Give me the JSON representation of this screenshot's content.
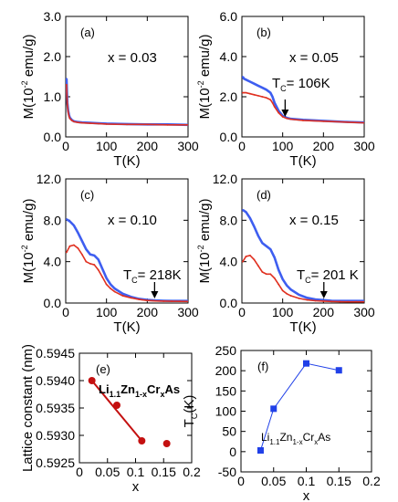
{
  "colors": {
    "zfc": "#3e5ef0",
    "fc": "#e03020",
    "lattice": "#c41010",
    "tc": "#2040e8"
  },
  "chart_data": [
    {
      "type": "line",
      "panel": "(a)",
      "note": "x = 0.03",
      "xlabel": "T(K)",
      "ylabel": "M(10^-2 emu/g)",
      "ylabel_parts": {
        "base": "M(10",
        "exp": "-2",
        "unit": " emu/g)"
      },
      "xlim": [
        0,
        300
      ],
      "ylim": [
        0,
        3
      ],
      "xticks": [
        "0",
        "100",
        "200",
        "300"
      ],
      "yticks": [
        "0.0",
        "1.0",
        "2.0",
        "3.0"
      ],
      "series": [
        {
          "role": "zfc",
          "x": [
            2,
            3,
            4,
            6,
            8,
            10,
            15,
            20,
            30,
            40,
            60,
            80,
            100,
            150,
            200,
            250,
            300
          ],
          "y": [
            1.45,
            1.1,
            0.85,
            0.65,
            0.55,
            0.48,
            0.42,
            0.39,
            0.37,
            0.36,
            0.35,
            0.34,
            0.33,
            0.32,
            0.31,
            0.31,
            0.3
          ]
        },
        {
          "role": "fc",
          "x": [
            2,
            3,
            4,
            6,
            8,
            10,
            15,
            20,
            30,
            40,
            60,
            80,
            100,
            150,
            200,
            250,
            300
          ],
          "y": [
            1.3,
            1.0,
            0.8,
            0.62,
            0.52,
            0.46,
            0.41,
            0.38,
            0.36,
            0.35,
            0.34,
            0.33,
            0.32,
            0.31,
            0.31,
            0.3,
            0.3
          ]
        }
      ]
    },
    {
      "type": "line",
      "panel": "(b)",
      "note": "x = 0.05",
      "xlabel": "T(K)",
      "ylabel": "M(10^-2 emu/g)",
      "ylabel_parts": {
        "base": "M(10",
        "exp": "-2",
        "unit": " emu/g)"
      },
      "xlim": [
        0,
        300
      ],
      "ylim": [
        0,
        6
      ],
      "xticks": [
        "0",
        "100",
        "200",
        "300"
      ],
      "yticks": [
        "0.0",
        "2.0",
        "4.0",
        "6.0"
      ],
      "tc_label": {
        "base": "T",
        "sub": "C",
        "rest": "= 106K",
        "T_K": 106
      },
      "series": [
        {
          "role": "zfc",
          "x": [
            2,
            5,
            10,
            20,
            30,
            40,
            50,
            60,
            70,
            75,
            80,
            90,
            100,
            110,
            120,
            150,
            200,
            250,
            300
          ],
          "y": [
            3.0,
            2.9,
            2.85,
            2.75,
            2.65,
            2.55,
            2.45,
            2.35,
            2.2,
            2.0,
            1.7,
            1.3,
            1.05,
            0.95,
            0.9,
            0.85,
            0.8,
            0.75,
            0.72
          ]
        },
        {
          "role": "fc",
          "x": [
            2,
            5,
            10,
            20,
            30,
            40,
            50,
            60,
            70,
            75,
            80,
            90,
            100,
            110,
            120,
            150,
            200,
            250,
            300
          ],
          "y": [
            2.2,
            2.2,
            2.2,
            2.15,
            2.1,
            2.05,
            2.0,
            1.95,
            1.85,
            1.7,
            1.5,
            1.2,
            1.0,
            0.92,
            0.88,
            0.82,
            0.78,
            0.74,
            0.7
          ]
        }
      ]
    },
    {
      "type": "line",
      "panel": "(c)",
      "note": "x = 0.10",
      "xlabel": "T(K)",
      "ylabel": "M(10^-2 emu/g)",
      "ylabel_parts": {
        "base": "M(10",
        "exp": "-2",
        "unit": " emu/g)"
      },
      "xlim": [
        0,
        300
      ],
      "ylim": [
        0,
        12
      ],
      "xticks": [
        "0",
        "100",
        "200",
        "300"
      ],
      "yticks": [
        "0.0",
        "4.0",
        "8.0",
        "12.0"
      ],
      "tc_label": {
        "base": "T",
        "sub": "C",
        "rest": "= 218K",
        "T_K": 218
      },
      "series": [
        {
          "role": "zfc",
          "x": [
            2,
            10,
            20,
            30,
            40,
            50,
            60,
            70,
            80,
            90,
            100,
            110,
            120,
            140,
            160,
            180,
            200,
            220,
            240,
            260,
            280,
            300
          ],
          "y": [
            8.1,
            7.9,
            7.5,
            6.8,
            6.0,
            5.2,
            4.7,
            4.6,
            4.2,
            3.3,
            2.4,
            1.8,
            1.4,
            0.9,
            0.6,
            0.4,
            0.3,
            0.25,
            0.22,
            0.2,
            0.2,
            0.2
          ]
        },
        {
          "role": "fc",
          "x": [
            2,
            10,
            20,
            30,
            40,
            50,
            60,
            70,
            80,
            90,
            100,
            110,
            120,
            140,
            160,
            180,
            200,
            220,
            240,
            260,
            280,
            300
          ],
          "y": [
            4.9,
            5.5,
            5.6,
            5.3,
            4.7,
            4.0,
            3.8,
            3.7,
            3.2,
            2.5,
            1.8,
            1.4,
            1.1,
            0.7,
            0.5,
            0.35,
            0.25,
            0.2,
            0.18,
            0.17,
            0.16,
            0.15
          ]
        }
      ]
    },
    {
      "type": "line",
      "panel": "(d)",
      "note": "x = 0.15",
      "xlabel": "T(K)",
      "ylabel": "M(10^-2 emu/g)",
      "ylabel_parts": {
        "base": "M(10",
        "exp": "-2",
        "unit": " emu/g)"
      },
      "xlim": [
        0,
        300
      ],
      "ylim": [
        0,
        12
      ],
      "xticks": [
        "0",
        "100",
        "200",
        "300"
      ],
      "yticks": [
        "0.0",
        "4.0",
        "8.0",
        "12.0"
      ],
      "tc_label": {
        "base": "T",
        "sub": "C",
        "rest": "= 201 K",
        "T_K": 201
      },
      "series": [
        {
          "role": "zfc",
          "x": [
            2,
            10,
            20,
            30,
            40,
            50,
            60,
            70,
            80,
            90,
            100,
            110,
            120,
            140,
            160,
            180,
            200,
            220,
            240,
            260,
            280,
            300
          ],
          "y": [
            9.0,
            8.8,
            8.2,
            7.4,
            6.5,
            5.8,
            5.5,
            5.2,
            4.4,
            3.2,
            2.3,
            1.7,
            1.3,
            0.8,
            0.5,
            0.35,
            0.28,
            0.22,
            0.2,
            0.2,
            0.2,
            0.2
          ]
        },
        {
          "role": "fc",
          "x": [
            2,
            10,
            20,
            30,
            40,
            50,
            60,
            70,
            80,
            90,
            100,
            110,
            120,
            140,
            160,
            180,
            200,
            220,
            240,
            260,
            280,
            300
          ],
          "y": [
            4.0,
            4.5,
            4.6,
            4.2,
            3.6,
            3.0,
            2.8,
            2.8,
            2.4,
            1.8,
            1.2,
            0.9,
            0.7,
            0.45,
            0.3,
            0.22,
            0.18,
            0.15,
            0.13,
            0.12,
            0.12,
            0.12
          ]
        }
      ]
    },
    {
      "type": "scatter",
      "panel": "(e)",
      "xlabel": "x",
      "ylabel": "Lattice constant (nm)",
      "compound": {
        "li": "Li",
        "s1": "1.1",
        "zn": "Zn",
        "s2": "1-x",
        "cr": "Cr",
        "s3": "x",
        "as": "As"
      },
      "xlim": [
        -0.025,
        0.2
      ],
      "ylim": [
        0.5925,
        0.5945
      ],
      "xticks": [
        "0",
        "0.05",
        "0.1",
        "0.15",
        "0.2"
      ],
      "yticks": [
        "0.5925",
        "0.5930",
        "0.5935",
        "0.5940",
        "0.5945"
      ],
      "series": [
        {
          "role": "lattice",
          "x": [
            0,
            0.05,
            0.1,
            0.15
          ],
          "y": [
            0.594,
            0.59355,
            0.5929,
            0.59285
          ]
        }
      ],
      "fit_line": {
        "x": [
          0,
          0.1
        ],
        "y": [
          0.594,
          0.5929
        ]
      }
    },
    {
      "type": "line",
      "panel": "(f)",
      "xlabel": "x",
      "ylabel": "T_C(K)",
      "ylabel_parts": {
        "base": "T",
        "sub": "C",
        "unit": "(K)"
      },
      "compound": {
        "li": "Li",
        "s1": "1.1",
        "zn": "Zn",
        "s2": "1-x",
        "cr": "Cr",
        "s3": "x",
        "as": "As"
      },
      "xlim": [
        0,
        0.2
      ],
      "ylim": [
        -50,
        250
      ],
      "xticks": [
        "0",
        "0.05",
        "0.1",
        "0.15",
        "0.2"
      ],
      "yticks": [
        "-50",
        "0",
        "50",
        "100",
        "150",
        "200",
        "250"
      ],
      "series": [
        {
          "role": "tc",
          "x": [
            0.03,
            0.05,
            0.1,
            0.15
          ],
          "y": [
            3,
            106,
            218,
            201
          ]
        }
      ]
    }
  ]
}
